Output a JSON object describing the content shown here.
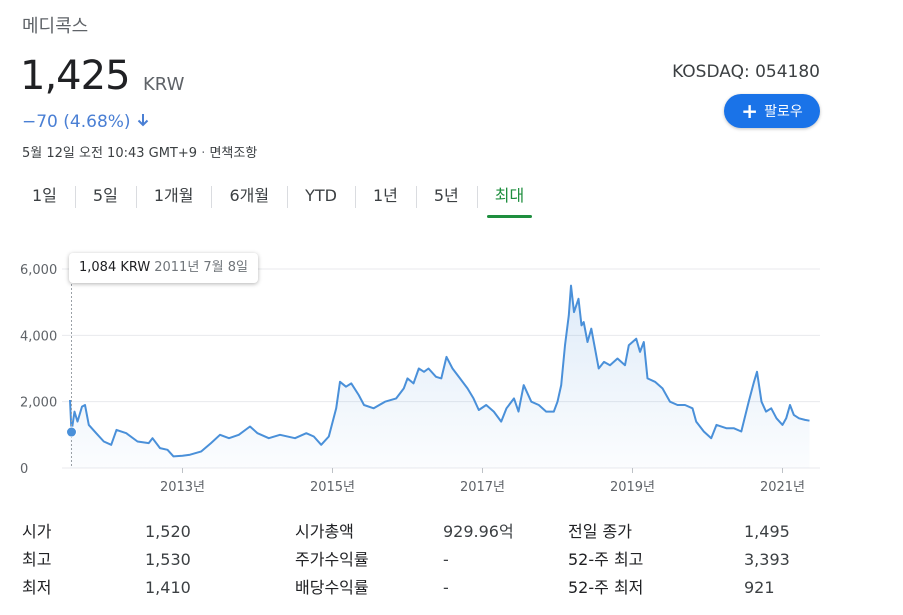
{
  "header": {
    "company": "메디콕스",
    "price": "1,425",
    "currency": "KRW",
    "change": "−70 (4.68%)",
    "timestamp": "5월 12일 오전 10:43 GMT+9",
    "disclaimer": "면책조항",
    "exchange": "KOSDAQ: 054180",
    "follow_label": "팔로우"
  },
  "colors": {
    "accent_blue": "#1a73e8",
    "change_down": "#4a7fd4",
    "line": "#4a90d9",
    "active_tab": "#1e8e3e"
  },
  "tabs": [
    {
      "label": "1일"
    },
    {
      "label": "5일"
    },
    {
      "label": "1개월"
    },
    {
      "label": "6개월"
    },
    {
      "label": "YTD"
    },
    {
      "label": "1년"
    },
    {
      "label": "5년"
    },
    {
      "label": "최대",
      "active": true
    }
  ],
  "tooltip": {
    "value": "1,084 KRW",
    "date": "2011년 7월 8일"
  },
  "stats": {
    "open": {
      "label": "시가",
      "value": "1,520"
    },
    "high": {
      "label": "최고",
      "value": "1,530"
    },
    "low": {
      "label": "최저",
      "value": "1,410"
    },
    "mktcap": {
      "label": "시가총액",
      "value": "929.96억"
    },
    "pe": {
      "label": "주가수익률",
      "value": "-"
    },
    "div": {
      "label": "배당수익률",
      "value": "-"
    },
    "prev": {
      "label": "전일 종가",
      "value": "1,495"
    },
    "hi52": {
      "label": "52-주 최고",
      "value": "3,393"
    },
    "lo52": {
      "label": "52-주 최저",
      "value": "921"
    }
  },
  "chart_data": {
    "type": "line",
    "yticks": [
      "6,000",
      "4,000",
      "2,000",
      "0"
    ],
    "ylim": [
      0,
      6000
    ],
    "xlim": [
      2011.5,
      2021.5
    ],
    "xticks": [
      {
        "label": "2013년",
        "x": 2013
      },
      {
        "label": "2015년",
        "x": 2015
      },
      {
        "label": "2017년",
        "x": 2017
      },
      {
        "label": "2019년",
        "x": 2019
      },
      {
        "label": "2021년",
        "x": 2021
      }
    ],
    "highlight": {
      "x": 2011.52,
      "y": 1084
    },
    "series": [
      {
        "points": [
          [
            2011.5,
            2050
          ],
          [
            2011.52,
            1084
          ],
          [
            2011.56,
            1700
          ],
          [
            2011.6,
            1400
          ],
          [
            2011.66,
            1850
          ],
          [
            2011.7,
            1900
          ],
          [
            2011.75,
            1300
          ],
          [
            2011.85,
            1050
          ],
          [
            2011.95,
            800
          ],
          [
            2012.05,
            700
          ],
          [
            2012.12,
            1150
          ],
          [
            2012.25,
            1050
          ],
          [
            2012.4,
            800
          ],
          [
            2012.55,
            750
          ],
          [
            2012.6,
            900
          ],
          [
            2012.7,
            600
          ],
          [
            2012.8,
            550
          ],
          [
            2012.88,
            350
          ],
          [
            2013.0,
            370
          ],
          [
            2013.1,
            400
          ],
          [
            2013.25,
            500
          ],
          [
            2013.38,
            750
          ],
          [
            2013.5,
            1000
          ],
          [
            2013.62,
            900
          ],
          [
            2013.75,
            1000
          ],
          [
            2013.9,
            1250
          ],
          [
            2014.0,
            1050
          ],
          [
            2014.15,
            900
          ],
          [
            2014.3,
            1000
          ],
          [
            2014.5,
            900
          ],
          [
            2014.65,
            1050
          ],
          [
            2014.75,
            950
          ],
          [
            2014.85,
            700
          ],
          [
            2014.95,
            950
          ],
          [
            2015.05,
            1800
          ],
          [
            2015.1,
            2600
          ],
          [
            2015.18,
            2450
          ],
          [
            2015.25,
            2550
          ],
          [
            2015.35,
            2200
          ],
          [
            2015.42,
            1900
          ],
          [
            2015.55,
            1800
          ],
          [
            2015.7,
            2000
          ],
          [
            2015.85,
            2100
          ],
          [
            2015.95,
            2400
          ],
          [
            2016.0,
            2700
          ],
          [
            2016.08,
            2550
          ],
          [
            2016.15,
            3000
          ],
          [
            2016.22,
            2900
          ],
          [
            2016.28,
            3000
          ],
          [
            2016.38,
            2750
          ],
          [
            2016.45,
            2700
          ],
          [
            2016.52,
            3350
          ],
          [
            2016.6,
            3000
          ],
          [
            2016.7,
            2700
          ],
          [
            2016.8,
            2400
          ],
          [
            2016.88,
            2100
          ],
          [
            2016.95,
            1750
          ],
          [
            2017.05,
            1900
          ],
          [
            2017.15,
            1700
          ],
          [
            2017.25,
            1400
          ],
          [
            2017.32,
            1800
          ],
          [
            2017.42,
            2100
          ],
          [
            2017.48,
            1700
          ],
          [
            2017.55,
            2500
          ],
          [
            2017.65,
            2000
          ],
          [
            2017.75,
            1900
          ],
          [
            2017.85,
            1700
          ],
          [
            2017.95,
            1700
          ],
          [
            2018.0,
            2000
          ],
          [
            2018.05,
            2500
          ],
          [
            2018.1,
            3700
          ],
          [
            2018.15,
            4600
          ],
          [
            2018.18,
            5500
          ],
          [
            2018.22,
            4700
          ],
          [
            2018.28,
            5100
          ],
          [
            2018.32,
            4300
          ],
          [
            2018.35,
            4400
          ],
          [
            2018.4,
            3800
          ],
          [
            2018.45,
            4200
          ],
          [
            2018.5,
            3600
          ],
          [
            2018.55,
            3000
          ],
          [
            2018.62,
            3200
          ],
          [
            2018.7,
            3100
          ],
          [
            2018.8,
            3300
          ],
          [
            2018.9,
            3100
          ],
          [
            2018.95,
            3700
          ],
          [
            2019.05,
            3900
          ],
          [
            2019.1,
            3500
          ],
          [
            2019.15,
            3800
          ],
          [
            2019.2,
            2700
          ],
          [
            2019.3,
            2600
          ],
          [
            2019.4,
            2400
          ],
          [
            2019.5,
            2000
          ],
          [
            2019.6,
            1900
          ],
          [
            2019.7,
            1900
          ],
          [
            2019.8,
            1800
          ],
          [
            2019.85,
            1400
          ],
          [
            2019.95,
            1100
          ],
          [
            2020.05,
            900
          ],
          [
            2020.12,
            1300
          ],
          [
            2020.25,
            1200
          ],
          [
            2020.35,
            1200
          ],
          [
            2020.45,
            1100
          ],
          [
            2020.55,
            2000
          ],
          [
            2020.62,
            2600
          ],
          [
            2020.66,
            2900
          ],
          [
            2020.72,
            2000
          ],
          [
            2020.78,
            1700
          ],
          [
            2020.85,
            1800
          ],
          [
            2020.92,
            1500
          ],
          [
            2021.0,
            1300
          ],
          [
            2021.05,
            1500
          ],
          [
            2021.1,
            1900
          ],
          [
            2021.15,
            1600
          ],
          [
            2021.22,
            1500
          ],
          [
            2021.3,
            1450
          ],
          [
            2021.36,
            1425
          ]
        ]
      }
    ]
  }
}
